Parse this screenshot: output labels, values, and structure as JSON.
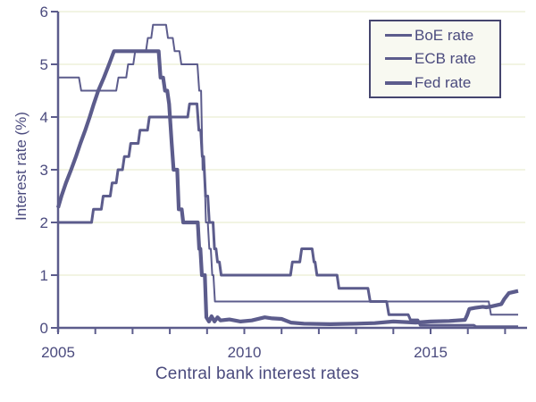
{
  "chart_data": {
    "type": "line",
    "title": "Central bank interest rates",
    "xlabel": "",
    "ylabel": "Interest rate (%)",
    "xlim": [
      2005,
      2017.6
    ],
    "ylim": [
      0,
      6
    ],
    "grid": "horizontal",
    "x_ticks": [
      2005,
      2006,
      2007,
      2008,
      2009,
      2010,
      2011,
      2012,
      2013,
      2014,
      2015,
      2016,
      2017
    ],
    "x_tick_labels": [
      {
        "value": 2005,
        "label": "2005"
      },
      {
        "value": 2010,
        "label": "2010"
      },
      {
        "value": 2015,
        "label": "2015"
      }
    ],
    "y_ticks": [
      0,
      1,
      2,
      3,
      4,
      5,
      6
    ],
    "legend": {
      "position": "top-right",
      "entries": [
        "BoE rate",
        "ECB rate",
        "Fed rate"
      ]
    },
    "colors": {
      "line": "#5c5c8c",
      "text": "#4b4b7e",
      "grid": "#f2f4e3",
      "legend_border": "#45456e",
      "legend_bg": "#f8f9f1"
    },
    "series": [
      {
        "id": "boe",
        "name": "BoE rate",
        "stroke_width": 2,
        "points": [
          [
            2005.0,
            4.75
          ],
          [
            2005.56,
            4.75
          ],
          [
            2005.62,
            4.5
          ],
          [
            2006.56,
            4.5
          ],
          [
            2006.62,
            4.75
          ],
          [
            2006.83,
            4.75
          ],
          [
            2006.88,
            5.0
          ],
          [
            2007.02,
            5.0
          ],
          [
            2007.07,
            5.25
          ],
          [
            2007.36,
            5.25
          ],
          [
            2007.41,
            5.5
          ],
          [
            2007.5,
            5.5
          ],
          [
            2007.55,
            5.75
          ],
          [
            2007.9,
            5.75
          ],
          [
            2007.95,
            5.5
          ],
          [
            2008.08,
            5.5
          ],
          [
            2008.13,
            5.25
          ],
          [
            2008.26,
            5.25
          ],
          [
            2008.31,
            5.0
          ],
          [
            2008.74,
            5.0
          ],
          [
            2008.79,
            4.5
          ],
          [
            2008.84,
            4.5
          ],
          [
            2008.88,
            3.0
          ],
          [
            2008.93,
            3.0
          ],
          [
            2008.97,
            2.0
          ],
          [
            2009.02,
            2.0
          ],
          [
            2009.06,
            1.5
          ],
          [
            2009.1,
            1.5
          ],
          [
            2009.14,
            1.0
          ],
          [
            2009.17,
            1.0
          ],
          [
            2009.21,
            0.5
          ],
          [
            2016.56,
            0.5
          ],
          [
            2016.62,
            0.25
          ],
          [
            2017.35,
            0.25
          ]
        ]
      },
      {
        "id": "ecb",
        "name": "ECB rate",
        "stroke_width": 3,
        "points": [
          [
            2005.0,
            2.0
          ],
          [
            2005.9,
            2.0
          ],
          [
            2005.95,
            2.25
          ],
          [
            2006.16,
            2.25
          ],
          [
            2006.21,
            2.5
          ],
          [
            2006.4,
            2.5
          ],
          [
            2006.45,
            2.75
          ],
          [
            2006.56,
            2.75
          ],
          [
            2006.61,
            3.0
          ],
          [
            2006.73,
            3.0
          ],
          [
            2006.78,
            3.25
          ],
          [
            2006.9,
            3.25
          ],
          [
            2006.95,
            3.5
          ],
          [
            2007.15,
            3.5
          ],
          [
            2007.2,
            3.75
          ],
          [
            2007.4,
            3.75
          ],
          [
            2007.45,
            4.0
          ],
          [
            2008.48,
            4.0
          ],
          [
            2008.53,
            4.25
          ],
          [
            2008.73,
            4.25
          ],
          [
            2008.78,
            3.75
          ],
          [
            2008.83,
            3.75
          ],
          [
            2008.87,
            3.25
          ],
          [
            2008.91,
            3.25
          ],
          [
            2008.96,
            2.5
          ],
          [
            2009.02,
            2.5
          ],
          [
            2009.06,
            2.0
          ],
          [
            2009.16,
            2.0
          ],
          [
            2009.2,
            1.5
          ],
          [
            2009.24,
            1.5
          ],
          [
            2009.28,
            1.25
          ],
          [
            2009.33,
            1.25
          ],
          [
            2009.38,
            1.0
          ],
          [
            2011.24,
            1.0
          ],
          [
            2011.29,
            1.25
          ],
          [
            2011.49,
            1.25
          ],
          [
            2011.54,
            1.5
          ],
          [
            2011.82,
            1.5
          ],
          [
            2011.87,
            1.25
          ],
          [
            2011.9,
            1.25
          ],
          [
            2011.95,
            1.0
          ],
          [
            2012.49,
            1.0
          ],
          [
            2012.54,
            0.75
          ],
          [
            2013.32,
            0.75
          ],
          [
            2013.38,
            0.5
          ],
          [
            2013.82,
            0.5
          ],
          [
            2013.88,
            0.25
          ],
          [
            2014.4,
            0.25
          ],
          [
            2014.46,
            0.15
          ],
          [
            2014.66,
            0.15
          ],
          [
            2014.72,
            0.05
          ],
          [
            2016.16,
            0.05
          ],
          [
            2016.22,
            0.02
          ],
          [
            2017.35,
            0.02
          ]
        ]
      },
      {
        "id": "fed",
        "name": "Fed rate",
        "stroke_width": 4.2,
        "points": [
          [
            2005.0,
            2.28
          ],
          [
            2005.09,
            2.5
          ],
          [
            2005.21,
            2.75
          ],
          [
            2005.35,
            3.0
          ],
          [
            2005.48,
            3.25
          ],
          [
            2005.6,
            3.5
          ],
          [
            2005.73,
            3.75
          ],
          [
            2005.85,
            4.0
          ],
          [
            2005.96,
            4.25
          ],
          [
            2006.08,
            4.5
          ],
          [
            2006.23,
            4.75
          ],
          [
            2006.37,
            5.0
          ],
          [
            2006.5,
            5.25
          ],
          [
            2007.7,
            5.25
          ],
          [
            2007.75,
            4.75
          ],
          [
            2007.82,
            4.75
          ],
          [
            2007.87,
            4.5
          ],
          [
            2007.93,
            4.5
          ],
          [
            2007.98,
            4.25
          ],
          [
            2008.05,
            3.5
          ],
          [
            2008.1,
            3.0
          ],
          [
            2008.2,
            3.0
          ],
          [
            2008.24,
            2.25
          ],
          [
            2008.32,
            2.25
          ],
          [
            2008.36,
            2.0
          ],
          [
            2008.75,
            2.0
          ],
          [
            2008.79,
            1.5
          ],
          [
            2008.82,
            1.5
          ],
          [
            2008.86,
            1.0
          ],
          [
            2008.94,
            1.0
          ],
          [
            2008.98,
            0.2
          ],
          [
            2009.05,
            0.12
          ],
          [
            2009.12,
            0.22
          ],
          [
            2009.2,
            0.12
          ],
          [
            2009.28,
            0.2
          ],
          [
            2009.36,
            0.14
          ],
          [
            2009.6,
            0.16
          ],
          [
            2009.9,
            0.12
          ],
          [
            2010.2,
            0.14
          ],
          [
            2010.55,
            0.2
          ],
          [
            2010.75,
            0.18
          ],
          [
            2011.0,
            0.17
          ],
          [
            2011.25,
            0.1
          ],
          [
            2011.6,
            0.08
          ],
          [
            2012.3,
            0.07
          ],
          [
            2013.0,
            0.08
          ],
          [
            2013.5,
            0.09
          ],
          [
            2014.0,
            0.12
          ],
          [
            2014.6,
            0.1
          ],
          [
            2015.0,
            0.12
          ],
          [
            2015.5,
            0.13
          ],
          [
            2015.92,
            0.15
          ],
          [
            2015.98,
            0.24
          ],
          [
            2016.04,
            0.36
          ],
          [
            2016.2,
            0.38
          ],
          [
            2016.4,
            0.4
          ],
          [
            2016.5,
            0.39
          ],
          [
            2016.65,
            0.41
          ],
          [
            2016.9,
            0.45
          ],
          [
            2016.98,
            0.55
          ],
          [
            2017.1,
            0.66
          ],
          [
            2017.35,
            0.7
          ]
        ]
      }
    ]
  }
}
